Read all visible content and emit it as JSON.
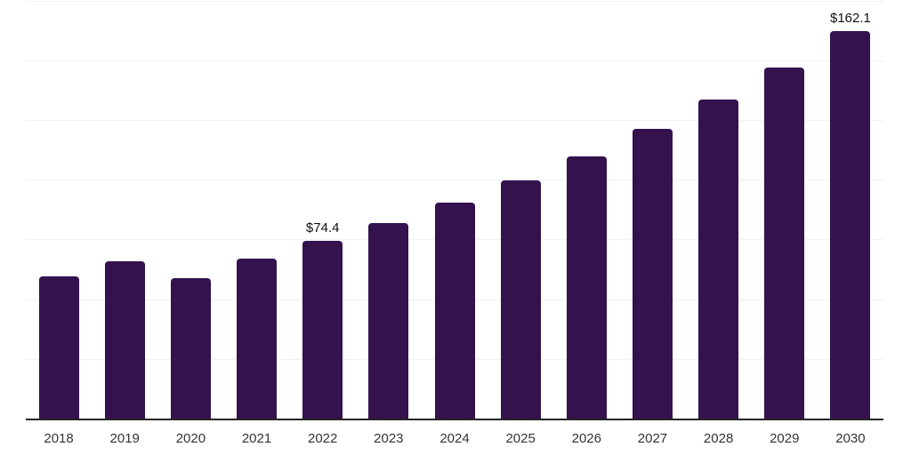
{
  "chart_data": {
    "type": "bar",
    "title": "",
    "xlabel": "",
    "ylabel": "",
    "categories": [
      "2018",
      "2019",
      "2020",
      "2021",
      "2022",
      "2023",
      "2024",
      "2025",
      "2026",
      "2027",
      "2028",
      "2029",
      "2030"
    ],
    "values": [
      59.5,
      65.9,
      58.6,
      67.0,
      74.4,
      82.0,
      90.4,
      99.7,
      109.9,
      121.1,
      133.5,
      147.1,
      162.1
    ],
    "value_labels": {
      "2022": "$74.4",
      "2030": "$162.1"
    },
    "ylim": [
      0,
      175
    ],
    "gridline_step": 25,
    "grid": "horizontal",
    "legend": "none",
    "colors": {
      "bar": "#34124e",
      "gridline": "#f0f0f0",
      "axis_line": "#262626",
      "tick_label": "#333333",
      "data_label": "#111111",
      "background": "#ffffff"
    }
  }
}
